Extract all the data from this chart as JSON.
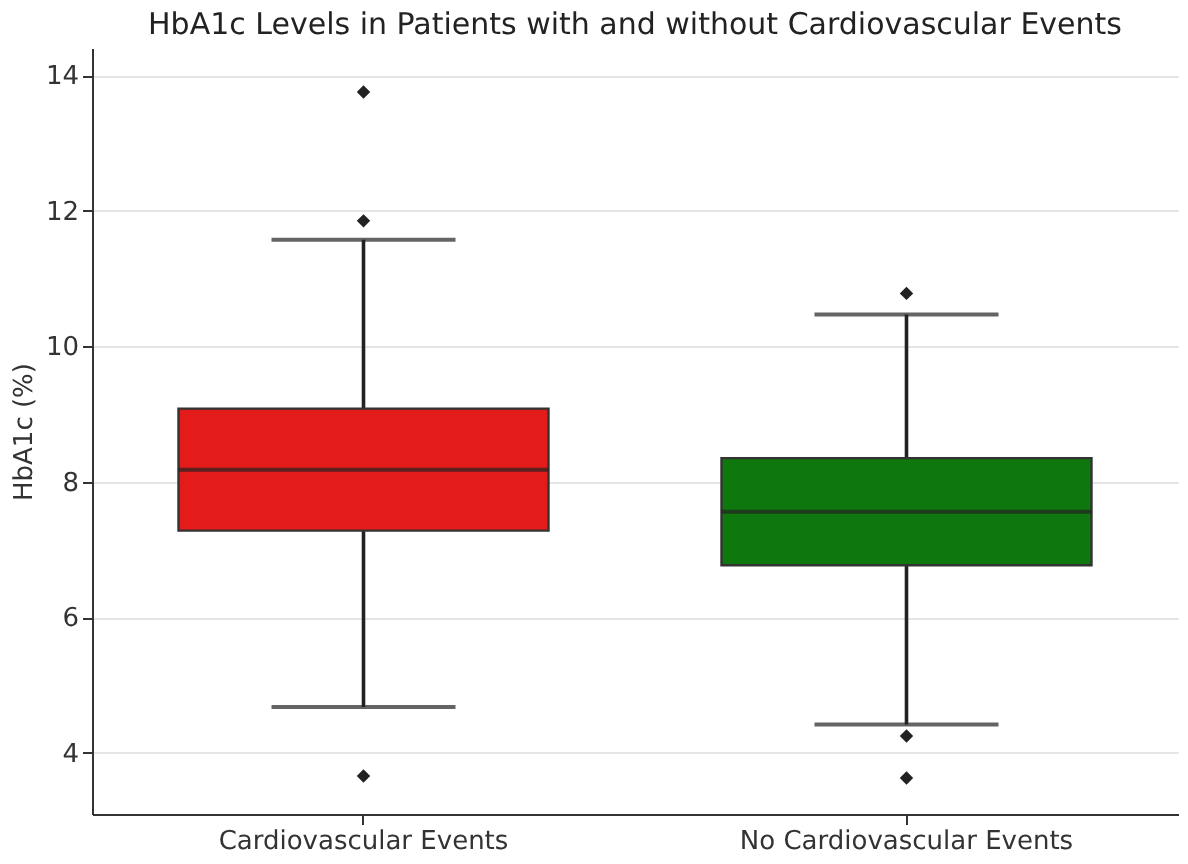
{
  "chart_data": {
    "type": "box",
    "title": "HbA1c Levels in Patients with and without Cardiovascular Events",
    "ylabel": "HbA1c (%)",
    "categories": [
      "Cardiovascular Events",
      "No Cardiovascular Events"
    ],
    "colors": [
      "#e31b1b",
      "#0e780e"
    ],
    "boxes": [
      {
        "low": 4.68,
        "q1": 7.28,
        "median": 8.18,
        "q3": 9.08,
        "high": 11.57,
        "outliers": [
          13.75,
          11.85,
          3.66
        ]
      },
      {
        "low": 4.42,
        "q1": 6.77,
        "median": 7.56,
        "q3": 8.35,
        "high": 10.47,
        "outliers": [
          10.78,
          4.25,
          3.63
        ]
      }
    ],
    "ylim": [
      3.1,
      14.4
    ],
    "yticks": [
      4,
      6,
      8,
      10,
      12,
      14
    ],
    "grid": "y",
    "marker": "diamond"
  }
}
